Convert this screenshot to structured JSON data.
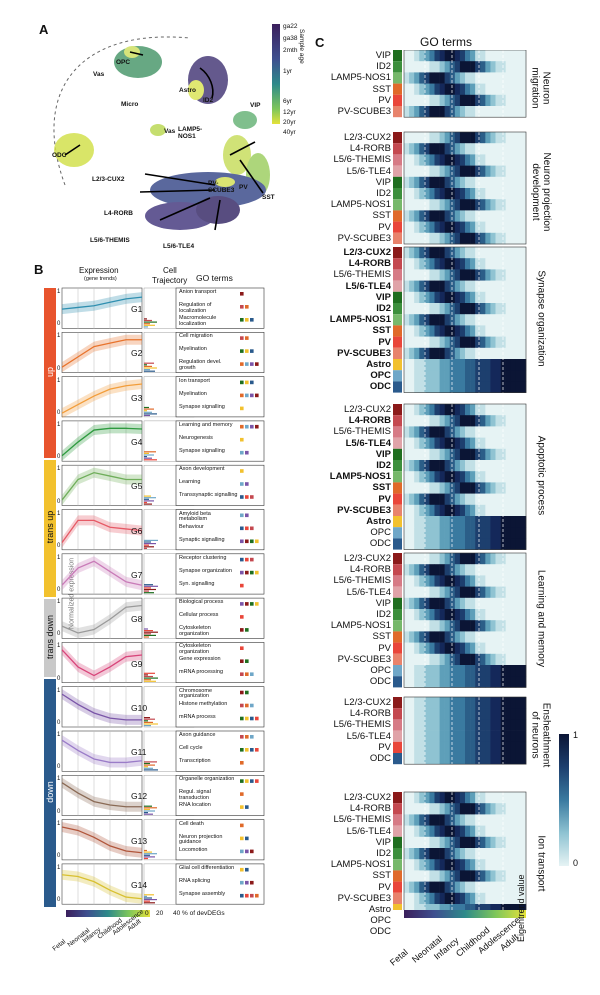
{
  "panelA": {
    "letter": "A",
    "clusters": [
      "OPC",
      "Astro",
      "Vas",
      "Micro",
      "Vas",
      "ODC",
      "ID2",
      "VIP",
      "LAMP5-NOS1",
      "L2/3-CUX2",
      "PV-SCUBE3",
      "SST",
      "PV",
      "L4-RORB",
      "L5/6-THEMIS",
      "L5/6-TLE4"
    ],
    "colorbar_title": "Sample age",
    "colorbar_ticks": [
      "ga22",
      "ga38",
      "2mth",
      "1yr",
      "6yr",
      "12yr",
      "20yr",
      "40yr"
    ]
  },
  "panelB": {
    "letter": "B",
    "header_expression": "Expression",
    "header_sub": "(gene trends)",
    "header_cell": "Cell",
    "header_traj": "Trajectory",
    "header_go": "GO terms",
    "y_axis_label": "Normalized expression",
    "group_labels": [
      "up",
      "trans up",
      "trans down",
      "down"
    ],
    "group_colors": [
      "#e8542d",
      "#f2c12e",
      "#c9c9c9",
      "#2a5a8c"
    ],
    "modules": [
      {
        "id": "G1",
        "go": [
          "Anion transport",
          "Regulation of localization",
          "Macromolecule localization"
        ]
      },
      {
        "id": "G2",
        "go": [
          "Cell migration",
          "Myelination",
          "Regulation devel. growth"
        ]
      },
      {
        "id": "G3",
        "go": [
          "Ion transport",
          "Myelination",
          "Synapse signalling"
        ]
      },
      {
        "id": "G4",
        "go": [
          "Learning and memory",
          "Neurogenesis",
          "Synapse signalling"
        ]
      },
      {
        "id": "G5",
        "go": [
          "Axon development",
          "Learning",
          "Transsynaptic signalling"
        ]
      },
      {
        "id": "G6",
        "go": [
          "Amyloid beta metabolism",
          "Behaviour",
          "Synaptic signalling"
        ]
      },
      {
        "id": "G7",
        "go": [
          "Receptor clustering",
          "Synapse organization",
          "Syn. signalling"
        ]
      },
      {
        "id": "G8",
        "go": [
          "Biological process",
          "Cellular process",
          "Cytoskeleton organization"
        ]
      },
      {
        "id": "G9",
        "go": [
          "Cytoskeleton organization",
          "Gene expression",
          "mRNA processing"
        ]
      },
      {
        "id": "G10",
        "go": [
          "Chromosome organization",
          "Histone methylation",
          "mRNA process"
        ]
      },
      {
        "id": "G11",
        "go": [
          "Axon guidance",
          "Cell cycle",
          "Transcription"
        ]
      },
      {
        "id": "G12",
        "go": [
          "Organelle organization",
          "Regul. signal transduction",
          "RNA location"
        ]
      },
      {
        "id": "G13",
        "go": [
          "Cell death",
          "Neuron projection guidance",
          "Locomotion"
        ]
      },
      {
        "id": "G14",
        "go": [
          "Glial cell differentiation",
          "RNA splicing",
          "Synapse assembly"
        ]
      }
    ],
    "x_stages": [
      "Fetal",
      "Neonatal",
      "Infancy",
      "Childhood",
      "Adolescence",
      "Adult"
    ],
    "bar_axis": [
      "0",
      "20",
      "40"
    ],
    "bar_axis_label": "% of devDEGs"
  },
  "panelC": {
    "letter": "C",
    "title": "GO terms",
    "blocks": [
      {
        "name": "Neuron migration",
        "rows": [
          "VIP",
          "ID2",
          "LAMP5-NOS1",
          "SST",
          "PV",
          "PV-SCUBE3"
        ],
        "bold": []
      },
      {
        "name": "Neuron projection development",
        "rows": [
          "L2/3-CUX2",
          "L4-RORB",
          "L5/6-THEMIS",
          "L5/6-TLE4",
          "VIP",
          "ID2",
          "LAMP5-NOS1",
          "SST",
          "PV",
          "PV-SCUBE3"
        ],
        "bold": []
      },
      {
        "name": "Synapse organization",
        "rows": [
          "L2/3-CUX2",
          "L4-RORB",
          "L5/6-THEMIS",
          "L5/6-TLE4",
          "VIP",
          "ID2",
          "LAMP5-NOS1",
          "SST",
          "PV",
          "PV-SCUBE3",
          "Astro",
          "OPC",
          "ODC"
        ],
        "bold": [
          "L2/3-CUX2",
          "L4-RORB",
          "L5/6-TLE4",
          "VIP",
          "ID2",
          "LAMP5-NOS1",
          "SST",
          "PV",
          "PV-SCUBE3",
          "Astro",
          "OPC",
          "ODC"
        ]
      },
      {
        "name": "Apoptotic process",
        "rows": [
          "L2/3-CUX2",
          "L4-RORB",
          "L5/6-THEMIS",
          "L5/6-TLE4",
          "VIP",
          "ID2",
          "LAMP5-NOS1",
          "SST",
          "PV",
          "PV-SCUBE3",
          "Astro",
          "OPC",
          "ODC"
        ],
        "bold": [
          "L4-RORB",
          "L5/6-TLE4",
          "VIP",
          "ID2",
          "LAMP5-NOS1",
          "SST",
          "PV",
          "PV-SCUBE3",
          "Astro"
        ]
      },
      {
        "name": "Learning and memory",
        "rows": [
          "L2/3-CUX2",
          "L4-RORB",
          "L5/6-THEMIS",
          "L5/6-TLE4",
          "VIP",
          "ID2",
          "LAMP5-NOS1",
          "SST",
          "PV",
          "PV-SCUBE3",
          "OPC",
          "ODC"
        ],
        "bold": []
      },
      {
        "name": "Ensheathment of neurons",
        "rows": [
          "L2/3-CUX2",
          "L4-RORB",
          "L5/6-THEMIS",
          "L5/6-TLE4",
          "PV",
          "ODC"
        ],
        "bold": []
      },
      {
        "name": "Ion transport",
        "rows": [
          "L2/3-CUX2",
          "L4-RORB",
          "L5/6-THEMIS",
          "L5/6-TLE4",
          "VIP",
          "ID2",
          "LAMP5-NOS1",
          "SST",
          "PV",
          "PV-SCUBE3",
          "Astro",
          "OPC",
          "ODC"
        ],
        "bold": []
      }
    ],
    "x_stages": [
      "Fetal",
      "Neonatal",
      "Infancy",
      "Childhood",
      "Adolescence",
      "Adult"
    ],
    "legend_title": "Eigentrend value",
    "legend_max": "1",
    "legend_min": "0",
    "cell_colors": {
      "L2/3-CUX2": "#8b1a1a",
      "L4-RORB": "#c4484f",
      "L5/6-THEMIS": "#d67a85",
      "L5/6-TLE4": "#e0a3a8",
      "VIP": "#1f6e1f",
      "ID2": "#3c8f3c",
      "LAMP5-NOS1": "#76b86a",
      "SST": "#e06a2a",
      "PV": "#e9463a",
      "PV-SCUBE3": "#e8836c",
      "Astro": "#f2c12e",
      "OPC": "#6fa7c8",
      "ODC": "#2a5a8c"
    }
  }
}
